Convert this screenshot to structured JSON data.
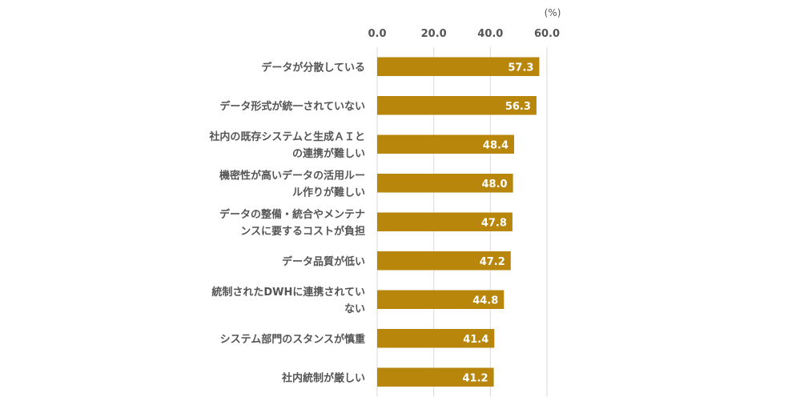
{
  "chart_data": {
    "type": "bar",
    "orientation": "horizontal",
    "unit": "(%)",
    "xlim": [
      0,
      60
    ],
    "ticks": [
      "0.0",
      "20.0",
      "40.0",
      "60.0"
    ],
    "tick_values": [
      0,
      20,
      40,
      60
    ],
    "grid": true,
    "legend": "none",
    "bar_color": "#b8860b",
    "categories": [
      [
        "データが分散している"
      ],
      [
        "データ形式が統一されていない"
      ],
      [
        "社内の既存システムと生成ＡＩと",
        "の連携が難しい"
      ],
      [
        "機密性が高いデータの活用ルー",
        "ル作りが難しい"
      ],
      [
        "データの整備・統合やメンテナ",
        "ンスに要するコストが負担"
      ],
      [
        "データ品質が低い"
      ],
      [
        "統制されたDWHに連携されてい",
        "ない"
      ],
      [
        "システム部門のスタンスが慎重"
      ],
      [
        "社内統制が厳しい"
      ]
    ],
    "values": [
      57.3,
      56.3,
      48.4,
      48.0,
      47.8,
      47.2,
      44.8,
      41.4,
      41.2
    ],
    "value_labels": [
      "57.3",
      "56.3",
      "48.4",
      "48.0",
      "47.8",
      "47.2",
      "44.8",
      "41.4",
      "41.2"
    ]
  }
}
